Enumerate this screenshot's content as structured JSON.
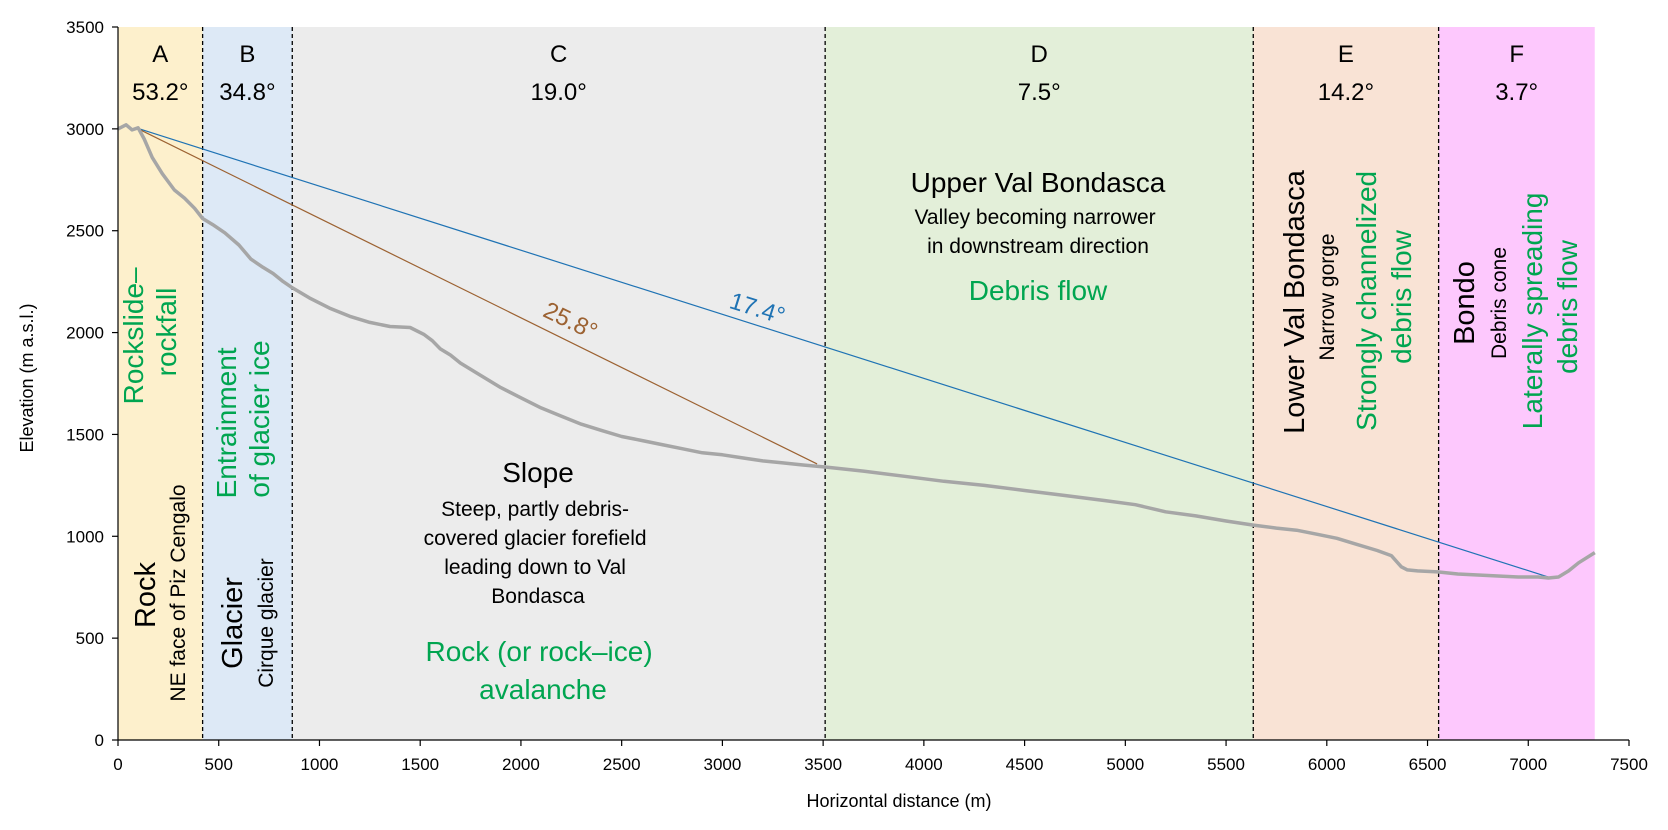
{
  "chart_data": {
    "type": "line",
    "xlabel": "Horizontal distance (m)",
    "ylabel": "Elevation (m a.s.l.)",
    "xlim": [
      0,
      7500
    ],
    "ylim": [
      0,
      3500
    ],
    "xticks": [
      0,
      500,
      1000,
      1500,
      2000,
      2500,
      3000,
      3500,
      4000,
      4500,
      5000,
      5500,
      6000,
      6500,
      7000,
      7500
    ],
    "yticks": [
      0,
      500,
      1000,
      1500,
      2000,
      2500,
      3000,
      3500
    ],
    "grid": false,
    "legend": "none",
    "zones": [
      {
        "letter": "A",
        "angle": "53.2°",
        "x0": 0,
        "x1": 420,
        "color": "#fdf0cc"
      },
      {
        "letter": "B",
        "angle": "34.8°",
        "x0": 420,
        "x1": 865,
        "color": "#dde9f6"
      },
      {
        "letter": "C",
        "angle": "19.0°",
        "x0": 865,
        "x1": 3510,
        "color": "#ececec"
      },
      {
        "letter": "D",
        "angle": "7.5°",
        "x0": 3510,
        "x1": 5635,
        "color": "#e3efd9"
      },
      {
        "letter": "E",
        "angle": "14.2°",
        "x0": 5635,
        "x1": 6555,
        "color": "#f9e3d5"
      },
      {
        "letter": "F",
        "angle": "3.7°",
        "x0": 6555,
        "x1": 7330,
        "color": "#fdc8fd"
      }
    ],
    "profile": {
      "color": "#a6a6a6",
      "x": [
        0,
        40,
        70,
        100,
        130,
        170,
        220,
        280,
        330,
        380,
        420,
        470,
        530,
        600,
        660,
        720,
        770,
        820,
        865,
        950,
        1050,
        1150,
        1250,
        1350,
        1450,
        1520,
        1560,
        1600,
        1650,
        1700,
        1800,
        1900,
        2000,
        2100,
        2200,
        2300,
        2400,
        2500,
        2600,
        2700,
        2800,
        2900,
        3000,
        3100,
        3200,
        3300,
        3400,
        3510,
        3700,
        3900,
        4100,
        4300,
        4500,
        4700,
        4900,
        5050,
        5200,
        5350,
        5500,
        5635,
        5750,
        5850,
        5950,
        6050,
        6150,
        6250,
        6320,
        6370,
        6400,
        6450,
        6550,
        6650,
        6750,
        6850,
        6950,
        7050,
        7100,
        7150,
        7200,
        7250,
        7330
      ],
      "y": [
        3000,
        3020,
        2995,
        3005,
        2950,
        2860,
        2780,
        2700,
        2660,
        2610,
        2560,
        2530,
        2490,
        2430,
        2360,
        2320,
        2290,
        2250,
        2220,
        2170,
        2120,
        2080,
        2050,
        2030,
        2025,
        1990,
        1960,
        1920,
        1890,
        1850,
        1790,
        1730,
        1680,
        1630,
        1590,
        1550,
        1520,
        1490,
        1470,
        1450,
        1430,
        1410,
        1400,
        1385,
        1370,
        1360,
        1350,
        1340,
        1320,
        1295,
        1270,
        1250,
        1225,
        1200,
        1175,
        1155,
        1120,
        1100,
        1075,
        1055,
        1040,
        1030,
        1010,
        990,
        960,
        930,
        905,
        850,
        835,
        830,
        825,
        815,
        810,
        805,
        800,
        800,
        795,
        800,
        830,
        870,
        920
      ]
    },
    "lines": [
      {
        "name": "17.4°",
        "color": "#1f73b4",
        "from": [
          90,
          3005
        ],
        "to": [
          7100,
          800
        ]
      },
      {
        "name": "25.8°",
        "color": "#9c6232",
        "from": [
          90,
          3005
        ],
        "to": [
          3470,
          1355
        ]
      }
    ],
    "boundaries": [
      420,
      865,
      3510,
      5635,
      6555
    ]
  },
  "labels": {
    "angle_17": {
      "text": "17.4°",
      "color": "#1f73b4"
    },
    "angle_25": {
      "text": "25.8°",
      "color": "#9c6232"
    },
    "zone_a_process": [
      "Rockslide–",
      "rockfall"
    ],
    "zone_a_type": "Rock",
    "zone_a_desc": "NE face of Piz Cengalo",
    "zone_b_process": [
      "Entrainment",
      "of glacier ice"
    ],
    "zone_b_type": "Glacier",
    "zone_b_desc": "Cirque glacier",
    "zone_c_title": "Slope",
    "zone_c_desc": [
      "Steep, partly debris-",
      "covered glacier forefield",
      "leading down to Val",
      "Bondasca"
    ],
    "zone_c_process": [
      "Rock (or rock–ice)",
      "avalanche"
    ],
    "zone_d_title": "Upper Val Bondasca",
    "zone_d_desc": [
      "Valley becoming narrower",
      "in downstream direction"
    ],
    "zone_d_process": "Debris flow",
    "zone_e_type": "Lower Val Bondasca",
    "zone_e_desc": "Narrow gorge",
    "zone_e_process": [
      "Strongly channelized",
      "debris flow"
    ],
    "zone_f_type": "Bondo",
    "zone_f_desc": "Debris cone",
    "zone_f_process": [
      "Laterally spreading",
      "debris flow"
    ],
    "process_color": "#00a550"
  }
}
